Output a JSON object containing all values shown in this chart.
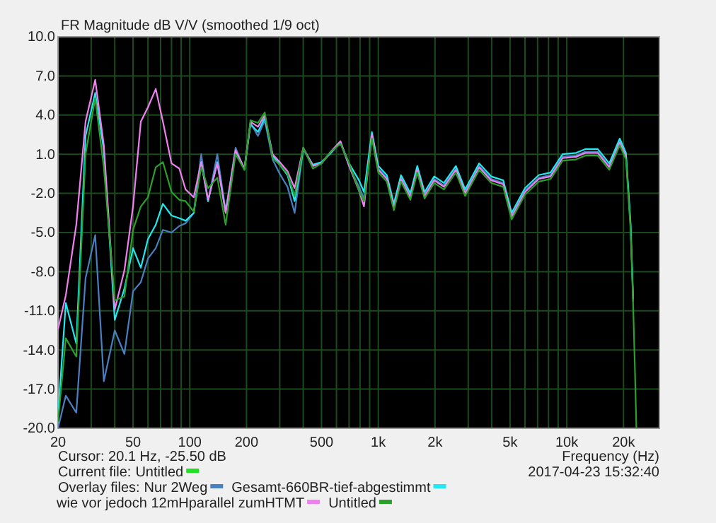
{
  "chart_data": {
    "type": "line",
    "title": "FR Magnitude dB V/V (smoothed 1/9 oct)",
    "xlabel": "Frequency (Hz)",
    "log": "x",
    "grid": true,
    "legend": "bottom",
    "line_style": "solid",
    "marker": "none",
    "annotations": [
      "Cursor: 20.1 Hz, -25.50 dB",
      "Current file:",
      "Overlay files:",
      "2017-04-23  15:32:40"
    ],
    "xlim": [
      20,
      31000
    ],
    "ylim": [
      -20,
      10
    ],
    "xticks": [
      20,
      {
        "value": 30,
        "label": null
      },
      {
        "value": 40,
        "label": null
      },
      50,
      {
        "value": 60,
        "label": null
      },
      {
        "value": 70,
        "label": null
      },
      {
        "value": 80,
        "label": null
      },
      {
        "value": 90,
        "label": null
      },
      100,
      200,
      {
        "value": 300,
        "label": null
      },
      {
        "value": 400,
        "label": null
      },
      500,
      {
        "value": 600,
        "label": null
      },
      {
        "value": 700,
        "label": null
      },
      {
        "value": 800,
        "label": null
      },
      {
        "value": 900,
        "label": null
      },
      {
        "value": 1000,
        "label": "1k"
      },
      {
        "value": 2000,
        "label": "2k"
      },
      {
        "value": 3000,
        "label": null
      },
      {
        "value": 4000,
        "label": null
      },
      {
        "value": 5000,
        "label": "5k"
      },
      {
        "value": 6000,
        "label": null
      },
      {
        "value": 7000,
        "label": null
      },
      {
        "value": 8000,
        "label": null
      },
      {
        "value": 9000,
        "label": null
      },
      {
        "value": 10000,
        "label": "10k"
      },
      {
        "value": 20000,
        "label": "20k"
      }
    ],
    "yticks": [
      {
        "value": 10,
        "label": "10.0"
      },
      {
        "value": 7,
        "label": "7.0"
      },
      {
        "value": 4,
        "label": "4.0"
      },
      {
        "value": 1,
        "label": "1.0"
      },
      {
        "value": -2,
        "label": "-2.0"
      },
      {
        "value": -5,
        "label": "-5.0"
      },
      {
        "value": -8,
        "label": "-8.0"
      },
      {
        "value": -11,
        "label": "-11.0"
      },
      {
        "value": -14,
        "label": "-14.0"
      },
      {
        "value": -17,
        "label": "-17.0"
      },
      {
        "value": -20,
        "label": "-20.0"
      }
    ],
    "x": [
      20,
      22,
      25,
      28,
      31.5,
      35,
      40,
      45,
      50,
      55,
      60,
      66,
      72,
      80,
      88,
      95,
      105,
      115,
      125,
      140,
      155,
      175,
      195,
      210,
      230,
      250,
      275,
      300,
      330,
      360,
      400,
      450,
      500,
      560,
      630,
      700,
      790,
      840,
      925,
      1000,
      1110,
      1210,
      1320,
      1480,
      1610,
      1760,
      1980,
      2230,
      2580,
      2890,
      3430,
      3970,
      4600,
      5100,
      6000,
      7100,
      8200,
      9500,
      11200,
      12600,
      14600,
      16800,
      19100,
      20600,
      21800,
      22500,
      23000,
      23400
    ],
    "series": [
      {
        "name": "Untitled",
        "color": "#22e022",
        "values": [
          null,
          null,
          null,
          null,
          null,
          null,
          null,
          null,
          null,
          null,
          null,
          null,
          null,
          null,
          null,
          null,
          null,
          null,
          null,
          null,
          null,
          null,
          null,
          null,
          null,
          null,
          null,
          null,
          null,
          null,
          null,
          null,
          null,
          null,
          null,
          null,
          null,
          null,
          null,
          null,
          null,
          null,
          null,
          null,
          null,
          null,
          null,
          null,
          null,
          null,
          null,
          null,
          null,
          null,
          null,
          null,
          null,
          null,
          null,
          null,
          null,
          null,
          null,
          null,
          null,
          null,
          null,
          null
        ]
      },
      {
        "name": "Nur 2Weg",
        "color": "#4a7fc0",
        "values": [
          -20,
          -17.5,
          -18.8,
          -8.5,
          -5.2,
          -16.4,
          -12.5,
          -14.3,
          -9.5,
          -8.8,
          -7,
          -6.2,
          -4.8,
          -5,
          -4.5,
          -4.3,
          -3.5,
          1,
          -2.6,
          1,
          -3.4,
          1.5,
          -0.2,
          3.4,
          2.4,
          3.6,
          0.6,
          -0.5,
          -1.5,
          -3.5,
          1.4,
          0.1,
          0.3,
          1.1,
          1.9,
          0.1,
          -1.5,
          -2.4,
          2.4,
          -0.1,
          -0.8,
          -3,
          -0.8,
          -2.2,
          -0.1,
          -2.1,
          -0.9,
          -1.4,
          -0.1,
          -1.9,
          0.1,
          -0.9,
          -1.2,
          -3.7,
          -1.8,
          -0.8,
          -0.6,
          0.8,
          0.9,
          1.2,
          1.2,
          0.1,
          2,
          0.9,
          -4.5,
          -10.3,
          null,
          null
        ]
      },
      {
        "name": "Gesamt-660BR-tief-abgestimmt",
        "color": "#22e8f0",
        "values": [
          -19,
          -10.4,
          -13.5,
          2.4,
          5.7,
          1.3,
          -11.7,
          -9.3,
          -6.2,
          -7.7,
          -5.5,
          -4.4,
          -2.8,
          -3.7,
          -3.9,
          -4.1,
          -3.5,
          0.4,
          -2.6,
          0.4,
          -3.4,
          1.2,
          -0.1,
          3.3,
          2.7,
          3.8,
          0.9,
          0.2,
          -0.6,
          -2.6,
          1.4,
          0.2,
          0.4,
          1.1,
          1.9,
          0.3,
          -1,
          -1.9,
          2.7,
          0.1,
          -0.6,
          -2.8,
          -0.6,
          -2,
          0.1,
          -1.9,
          -0.7,
          -1.2,
          0.1,
          -1.7,
          0.3,
          -0.7,
          -1,
          -3.5,
          -1.6,
          -0.6,
          -0.4,
          1,
          1.1,
          1.4,
          1.4,
          0.3,
          2.2,
          1.1,
          -4.3,
          -10.1,
          null,
          null
        ]
      },
      {
        "name": "wie vor jedoch 12mHparallel zumHTMT",
        "color": "#f080f0",
        "values": [
          -12.4,
          -9.8,
          -4.4,
          3.5,
          6.7,
          1.7,
          -10.9,
          -7.9,
          -3,
          3.5,
          4.6,
          6,
          3.5,
          0.3,
          -0.1,
          -1.7,
          -2.3,
          0.4,
          -2.5,
          0.3,
          -3.5,
          1.3,
          -0.1,
          3.5,
          3.1,
          4,
          1,
          0.4,
          -0.3,
          -1.6,
          1.5,
          0.1,
          0.3,
          1.2,
          2,
          0.1,
          -1.8,
          -3,
          2.5,
          -0.2,
          -0.9,
          -3.1,
          -0.9,
          -2.3,
          -0.2,
          -2.2,
          -1,
          -1.5,
          -0.2,
          -2,
          0,
          -1,
          -1.3,
          -3.8,
          -1.9,
          -0.9,
          -0.7,
          0.7,
          0.8,
          1.1,
          1.1,
          0,
          1.9,
          0.8,
          null,
          null,
          null,
          null
        ]
      },
      {
        "name": "Untitled",
        "color": "#2ca02c",
        "values": [
          -19.5,
          -13.1,
          -14.5,
          1,
          5.3,
          0,
          -10.2,
          -9.9,
          -4.8,
          -3,
          -2.3,
          0,
          0.4,
          -1.9,
          -2.5,
          -2.6,
          -3.4,
          0,
          -1.6,
          -0.8,
          -4.4,
          1,
          -0.2,
          3.6,
          3.4,
          4.2,
          0.7,
          0.2,
          -0.5,
          -2.2,
          1.5,
          -0.1,
          0.3,
          1.2,
          1.8,
          0.3,
          -1.8,
          -2.6,
          2.2,
          -0.4,
          -1.1,
          -3.3,
          -1.1,
          -2.5,
          -0.4,
          -2.4,
          -1.2,
          -1.7,
          -0.4,
          -2.2,
          -0.2,
          -1.2,
          -1.5,
          -4,
          -2.1,
          -1.1,
          -0.9,
          0.5,
          0.6,
          0.9,
          0.9,
          -0.2,
          1.7,
          0.6,
          -4.8,
          -10.6,
          -15.6,
          -20
        ]
      }
    ]
  }
}
